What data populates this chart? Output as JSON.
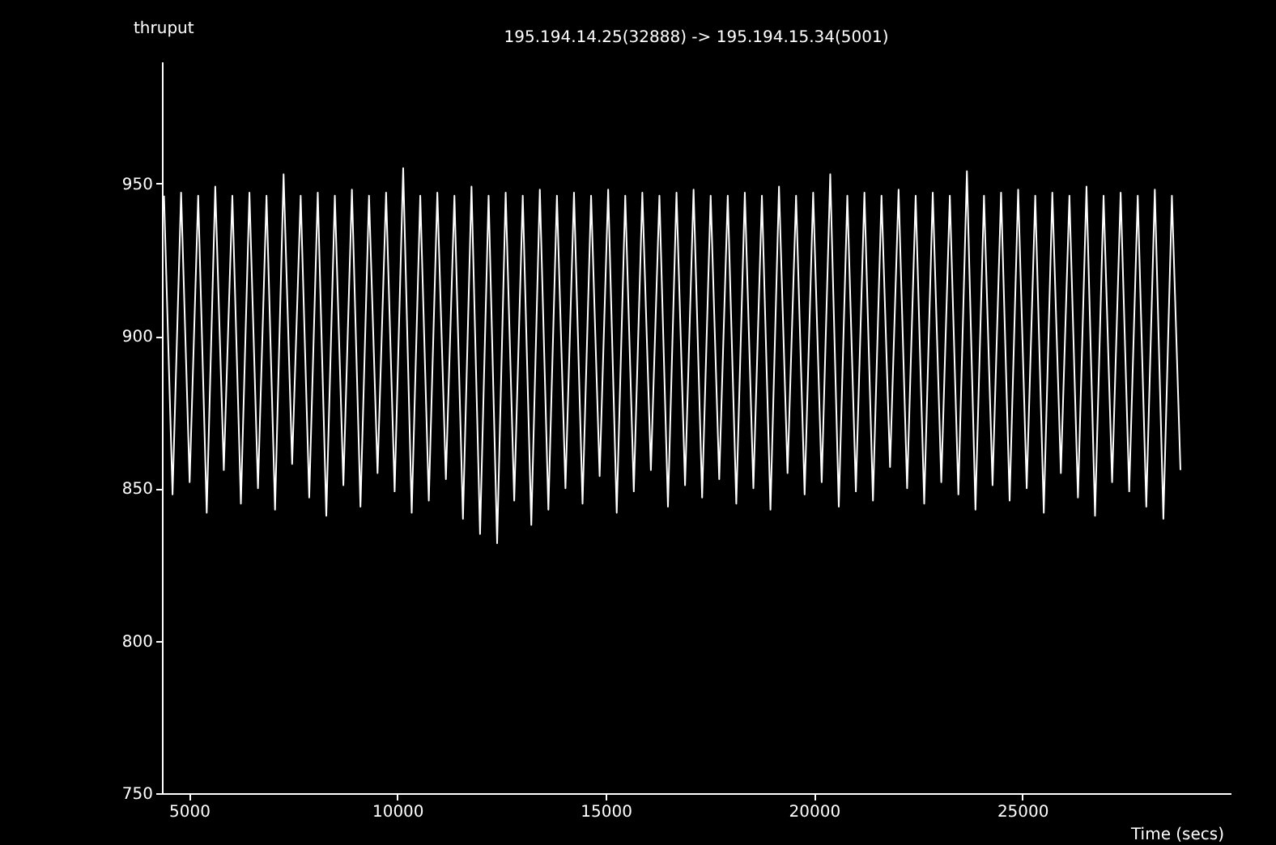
{
  "chart_data": {
    "type": "line",
    "title": "195.194.14.25(32888) -> 195.194.15.34(5001)",
    "xlabel": "Time (secs)",
    "ylabel": "thruput",
    "x": [
      4400,
      4605,
      4810,
      5015,
      5220,
      5425,
      5630,
      5835,
      6040,
      6245,
      6450,
      6655,
      6860,
      7065,
      7270,
      7475,
      7680,
      7885,
      8090,
      8295,
      8500,
      8705,
      8910,
      9115,
      9320,
      9525,
      9730,
      9935,
      10140,
      10345,
      10550,
      10755,
      10960,
      11165,
      11370,
      11575,
      11780,
      11985,
      12190,
      12395,
      12600,
      12805,
      13010,
      13215,
      13420,
      13625,
      13830,
      14035,
      14240,
      14445,
      14650,
      14855,
      15060,
      15265,
      15470,
      15675,
      15880,
      16085,
      16290,
      16495,
      16700,
      16905,
      17110,
      17315,
      17520,
      17725,
      17930,
      18135,
      18340,
      18545,
      18750,
      18955,
      19160,
      19365,
      19570,
      19775,
      19980,
      20185,
      20390,
      20595,
      20800,
      21005,
      21210,
      21415,
      21620,
      21825,
      22030,
      22235,
      22440,
      22645,
      22850,
      23055,
      23260,
      23465,
      23670,
      23875,
      24080,
      24285,
      24490,
      24695,
      24900,
      25105,
      25310,
      25515,
      25720,
      25925,
      26130,
      26335,
      26540,
      26745,
      26950,
      27155,
      27360,
      27565,
      27770,
      27975,
      28180,
      28385,
      28590,
      28795
    ],
    "series": [
      {
        "color": "#ffffff",
        "values": [
          946,
          848,
          947,
          852,
          946,
          842,
          949,
          856,
          946,
          845,
          947,
          850,
          946,
          843,
          953,
          858,
          946,
          847,
          947,
          841,
          946,
          851,
          948,
          844,
          946,
          855,
          947,
          849,
          955,
          842,
          946,
          846,
          947,
          853,
          946,
          840,
          949,
          835,
          946,
          832,
          947,
          846,
          946,
          838,
          948,
          843,
          946,
          850,
          947,
          845,
          946,
          854,
          948,
          842,
          946,
          849,
          947,
          856,
          946,
          844,
          947,
          851,
          948,
          847,
          946,
          853,
          946,
          845,
          947,
          850,
          946,
          843,
          949,
          855,
          946,
          848,
          947,
          852,
          953,
          844,
          946,
          849,
          947,
          846,
          946,
          857,
          948,
          850,
          946,
          845,
          947,
          852,
          946,
          848,
          954,
          843,
          946,
          851,
          947,
          846,
          948,
          850,
          946,
          842,
          947,
          855,
          946,
          847,
          949,
          841,
          946,
          852,
          947,
          849,
          946,
          844,
          948,
          840,
          946,
          856
        ]
      }
    ],
    "xlim": [
      4350,
      30000
    ],
    "ylim": [
      750,
      990
    ],
    "xticks": [
      5000,
      10000,
      15000,
      20000,
      25000
    ],
    "yticks": [
      750,
      800,
      850,
      900,
      950
    ],
    "grid": false,
    "marker": "none",
    "line_style": "solid"
  }
}
